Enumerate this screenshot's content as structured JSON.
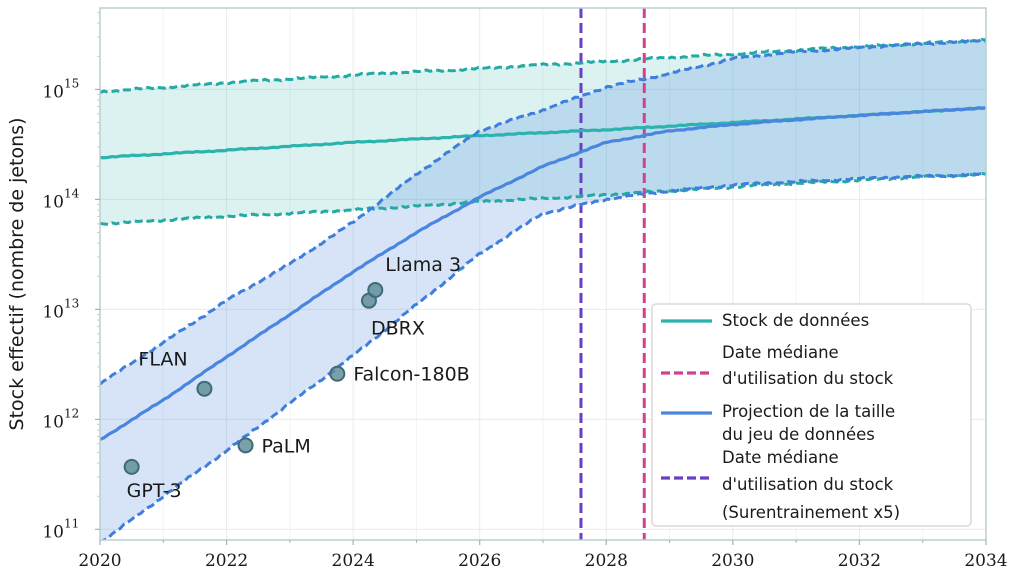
{
  "chart_data": {
    "type": "line",
    "title": "",
    "xlabel": "",
    "ylabel": "Stock effectif (nombre de jetons)",
    "xlim": [
      2020,
      2034
    ],
    "ylim": [
      80000000000.0,
      5500000000000000.0
    ],
    "yscale": "log",
    "grid": true,
    "legend_position": "bottom-right",
    "x_ticks": [
      2020,
      2022,
      2024,
      2026,
      2028,
      2030,
      2032,
      2034
    ],
    "x_tick_labels": [
      "2020",
      "2022",
      "2024",
      "2026",
      "2028",
      "2030",
      "2032",
      "2034"
    ],
    "y_ticks": [
      100000000000.0,
      1000000000000.0,
      10000000000000.0,
      100000000000000.0,
      1000000000000000.0
    ],
    "y_tick_labels": [
      {
        "base": "10",
        "exp": "11"
      },
      {
        "base": "10",
        "exp": "12"
      },
      {
        "base": "10",
        "exp": "13"
      },
      {
        "base": "10",
        "exp": "14"
      },
      {
        "base": "10",
        "exp": "15"
      }
    ],
    "series": [
      {
        "name": "Stock de données",
        "color": "#2bb3ad",
        "x": [
          2020,
          2022,
          2024,
          2026,
          2028,
          2030,
          2032,
          2034
        ],
        "y": [
          240000000000000.0,
          280000000000000.0,
          330000000000000.0,
          380000000000000.0,
          430000000000000.0,
          500000000000000.0,
          580000000000000.0,
          680000000000000.0
        ],
        "lower": [
          60000000000000.0,
          70000000000000.0,
          80000000000000.0,
          95000000000000.0,
          110000000000000.0,
          130000000000000.0,
          150000000000000.0,
          170000000000000.0
        ],
        "upper": [
          950000000000000.0,
          1150000000000000.0,
          1350000000000000.0,
          1550000000000000.0,
          1800000000000000.0,
          2100000000000000.0,
          2450000000000000.0,
          2800000000000000.0
        ]
      },
      {
        "name": "Projection de la taille du jeu de données",
        "color": "#4a86e0",
        "x": [
          2020,
          2021,
          2022,
          2023,
          2024,
          2025,
          2026,
          2027,
          2028,
          2029,
          2030,
          2031,
          2032,
          2033,
          2034
        ],
        "y": [
          650000000000.0,
          1500000000000.0,
          3700000000000.0,
          9000000000000.0,
          22000000000000.0,
          50000000000000.0,
          105000000000000.0,
          200000000000000.0,
          330000000000000.0,
          420000000000000.0,
          480000000000000.0,
          530000000000000.0,
          580000000000000.0,
          630000000000000.0,
          680000000000000.0
        ],
        "lower": [
          75000000000.0,
          200000000000.0,
          520000000000.0,
          1400000000000.0,
          3800000000000.0,
          11000000000000.0,
          32000000000000.0,
          75000000000000.0,
          100000000000000.0,
          120000000000000.0,
          135000000000000.0,
          145000000000000.0,
          155000000000000.0,
          162000000000000.0,
          170000000000000.0
        ],
        "upper": [
          2100000000000.0,
          5000000000000.0,
          12000000000000.0,
          26000000000000.0,
          62000000000000.0,
          170000000000000.0,
          420000000000000.0,
          650000000000000.0,
          1050000000000000.0,
          1400000000000000.0,
          1900000000000000.0,
          2200000000000000.0,
          2400000000000000.0,
          2600000000000000.0,
          2800000000000000.0
        ]
      }
    ],
    "vlines": [
      {
        "name": "Date médiane d'utilisation du stock",
        "x": 2028.6,
        "color": "#d2418f"
      },
      {
        "name": "Date médiane d'utilisation du stock (Surentrainement x5)",
        "x": 2027.6,
        "color": "#6a3fc4"
      }
    ],
    "points": [
      {
        "label": "GPT-3",
        "x": 2020.5,
        "y": 370000000000.0,
        "label_pos": "below"
      },
      {
        "label": "FLAN",
        "x": 2021.65,
        "y": 1900000000000.0,
        "label_pos": "upper-left"
      },
      {
        "label": "PaLM",
        "x": 2022.3,
        "y": 580000000000.0,
        "label_pos": "right"
      },
      {
        "label": "Falcon-180B",
        "x": 2023.75,
        "y": 2600000000000.0,
        "label_pos": "right"
      },
      {
        "label": "DBRX",
        "x": 2024.25,
        "y": 12000000000000.0,
        "label_pos": "below"
      },
      {
        "label": "Llama 3",
        "x": 2024.35,
        "y": 15000000000000.0,
        "label_pos": "upper-right"
      }
    ],
    "point_color": "#5d8b99",
    "legend": [
      {
        "label_lines": [
          "Stock de données"
        ],
        "color": "#2bb3ad",
        "dash": false
      },
      {
        "label_lines": [
          "Date médiane",
          "d'utilisation du stock"
        ],
        "color": "#d2418f",
        "dash": true
      },
      {
        "label_lines": [
          "Projection de la taille",
          "du jeu de données"
        ],
        "color": "#4a86e0",
        "dash": false
      },
      {
        "label_lines": [
          "Date médiane",
          "d'utilisation du stock",
          "(Surentrainement x5)"
        ],
        "color": "#6a3fc4",
        "dash": true
      }
    ]
  }
}
